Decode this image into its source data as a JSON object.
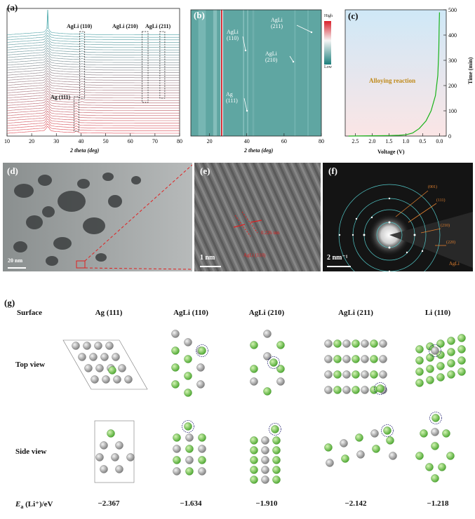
{
  "panels": {
    "a": {
      "label": "(a)",
      "xlabel": "2 theta (deg)",
      "xticks": [
        "10",
        "20",
        "30",
        "40",
        "50",
        "60",
        "70",
        "80"
      ],
      "annotations": [
        "AgLi (110)",
        "AgLi (210)",
        "AgLi (211)",
        "Ag (111)"
      ]
    },
    "b": {
      "label": "(b)",
      "xlabel": "2 theta (deg)",
      "xticks": [
        "20",
        "40",
        "60",
        "80"
      ],
      "colorbar_high": "High",
      "colorbar_low": "Low",
      "annotations": [
        "AgLi\n(110)",
        "AgLi\n(211)",
        "AgLi\n(210)",
        "Ag\n(111)"
      ]
    },
    "c": {
      "label": "(c)",
      "xlabel": "Voltage (V)",
      "ylabel": "Time (min)",
      "xticks": [
        "2.5",
        "2.0",
        "1.5",
        "1.0",
        "0.5",
        "0.0"
      ],
      "yticks": [
        "0",
        "100",
        "200",
        "300",
        "400",
        "500"
      ],
      "annotation": "Alloying reaction"
    },
    "d": {
      "label": "(d)",
      "scale": "20 nm"
    },
    "e": {
      "label": "(e)",
      "scale": "1 nm",
      "spacing": "0.226 nm",
      "plane": "AgLi (110)"
    },
    "f": {
      "label": "(f)",
      "scale": "2 nm⁻¹",
      "rings": [
        "(001)",
        "(111)",
        "(210)",
        "(220)"
      ],
      "phase": "AgLi"
    },
    "g": {
      "label": "(g)",
      "surface_header": "Surface",
      "top_view": "Top view",
      "side_view": "Side view",
      "energy_label_main": "E",
      "energy_label_sub": "a",
      "energy_label_rest": " (Li⁺)/eV",
      "columns": [
        {
          "name": "Ag (111)",
          "energy": "−2.367"
        },
        {
          "name": "AgLi (110)",
          "energy": "−1.634"
        },
        {
          "name": "AgLi (210)",
          "energy": "−1.910"
        },
        {
          "name": "AgLi (211)",
          "energy": "−2.142"
        },
        {
          "name": "Li (110)",
          "energy": "−1.218"
        }
      ]
    }
  },
  "chart_data": [
    {
      "type": "line",
      "panel": "a",
      "xlabel": "2 theta (deg)",
      "xlim": [
        10,
        80
      ],
      "series_count": 40,
      "peaks": [
        {
          "label": "Ag (111)",
          "x": 38.1
        },
        {
          "label": "AgLi (110)",
          "x": 40.5
        },
        {
          "label": "AgLi (210)",
          "x": 66
        },
        {
          "label": "AgLi (211)",
          "x": 73
        }
      ]
    },
    {
      "type": "heatmap",
      "panel": "b",
      "xlabel": "2 theta (deg)",
      "xlim": [
        10,
        80
      ]
    },
    {
      "type": "line",
      "panel": "c",
      "xlabel": "Voltage (V)",
      "ylabel": "Time (min)",
      "xlim": [
        2.8,
        -0.2
      ],
      "ylim": [
        0,
        500
      ],
      "x": [
        2.7,
        2.0,
        1.5,
        1.2,
        1.0,
        0.8,
        0.6,
        0.4,
        0.25,
        0.12,
        0.05,
        0.02,
        0.01,
        0.0
      ],
      "y": [
        0,
        1,
        2,
        3,
        5,
        12,
        30,
        60,
        100,
        160,
        240,
        340,
        430,
        490
      ]
    }
  ]
}
